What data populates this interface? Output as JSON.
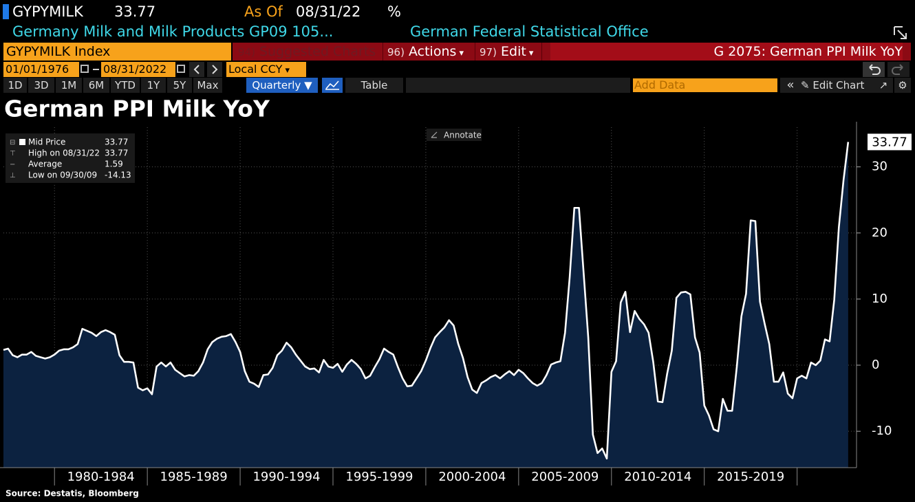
{
  "header": {
    "ticker": "GYPYMILK",
    "last_price": 33.77,
    "as_of_label": "As Of",
    "as_of_date": "08/31/22",
    "unit": "%",
    "description": "Germany Milk and Milk Products GP09 105...",
    "source_org": "German Federal Statistical Office"
  },
  "toolbar": {
    "security": "GYPYMILK Index",
    "menus": [
      {
        "num": "94)",
        "label": "Suggested Charts"
      },
      {
        "num": "96)",
        "label": "Actions"
      },
      {
        "num": "97)",
        "label": "Edit"
      }
    ],
    "chart_id": "G 2075: German PPI Milk YoY",
    "start_date": "01/01/1976",
    "end_date": "08/31/2022",
    "currency": "Local CCY",
    "periods": [
      "1D",
      "3D",
      "1M",
      "6M",
      "YTD",
      "1Y",
      "5Y",
      "Max"
    ],
    "frequency": "Quarterly",
    "table": "Table",
    "add_data": "Add Data",
    "edit_chart": "Edit Chart"
  },
  "chart_data": {
    "type": "area",
    "title": "German PPI Milk YoY",
    "annotate": "Annotate",
    "legend_items": [
      {
        "label": "Mid Price",
        "value": 33.77
      },
      {
        "label": "High on 08/31/22",
        "value": 33.77
      },
      {
        "label": "Average",
        "value": 1.59
      },
      {
        "label": "Low on 09/30/09",
        "value": -14.13
      }
    ],
    "x": [
      1977.25,
      1977.5,
      1977.75,
      1978,
      1978.25,
      1978.5,
      1978.75,
      1979,
      1979.25,
      1979.5,
      1979.75,
      1980,
      1980.25,
      1980.5,
      1980.75,
      1981,
      1981.25,
      1981.5,
      1981.75,
      1982,
      1982.25,
      1982.5,
      1982.75,
      1983,
      1983.25,
      1983.5,
      1983.75,
      1984,
      1984.25,
      1984.5,
      1984.75,
      1985,
      1985.25,
      1985.5,
      1985.75,
      1986,
      1986.25,
      1986.5,
      1986.75,
      1987,
      1987.25,
      1987.5,
      1987.75,
      1988,
      1988.25,
      1988.5,
      1988.75,
      1989,
      1989.25,
      1989.5,
      1989.75,
      1990,
      1990.25,
      1990.5,
      1990.75,
      1991,
      1991.25,
      1991.5,
      1991.75,
      1992,
      1992.25,
      1992.5,
      1992.75,
      1993,
      1993.25,
      1993.5,
      1993.75,
      1994,
      1994.25,
      1994.5,
      1994.75,
      1995,
      1995.25,
      1995.5,
      1995.75,
      1996,
      1996.25,
      1996.5,
      1996.75,
      1997,
      1997.25,
      1997.5,
      1997.75,
      1998,
      1998.25,
      1998.5,
      1998.75,
      1999,
      1999.25,
      1999.5,
      1999.75,
      2000,
      2000.25,
      2000.5,
      2000.75,
      2001,
      2001.25,
      2001.5,
      2001.75,
      2002,
      2002.25,
      2002.5,
      2002.75,
      2003,
      2003.25,
      2003.5,
      2003.75,
      2004,
      2004.25,
      2004.5,
      2004.75,
      2005,
      2005.25,
      2005.5,
      2005.75,
      2006,
      2006.25,
      2006.5,
      2006.75,
      2007,
      2007.25,
      2007.5,
      2007.75,
      2008,
      2008.25,
      2008.5,
      2008.75,
      2009,
      2009.25,
      2009.5,
      2009.75,
      2010,
      2010.25,
      2010.5,
      2010.75,
      2011,
      2011.25,
      2011.5,
      2011.75,
      2012,
      2012.25,
      2012.5,
      2012.75,
      2013,
      2013.25,
      2013.5,
      2013.75,
      2014,
      2014.25,
      2014.5,
      2014.75,
      2015,
      2015.25,
      2015.5,
      2015.75,
      2016,
      2016.25,
      2016.5,
      2016.75,
      2017,
      2017.25,
      2017.5,
      2017.75,
      2018,
      2018.25,
      2018.5,
      2018.75,
      2019,
      2019.25,
      2019.5,
      2019.75,
      2020,
      2020.25,
      2020.5,
      2020.75,
      2021,
      2021.25,
      2021.5,
      2021.75,
      2022,
      2022.25,
      2022.5,
      2022.75
    ],
    "values": [
      2.3,
      2.5,
      1.5,
      1.2,
      1.6,
      1.6,
      2.0,
      1.4,
      1.2,
      1.0,
      1.2,
      1.6,
      2.2,
      2.4,
      2.4,
      2.7,
      3.2,
      5.5,
      5.2,
      4.9,
      4.4,
      5.0,
      5.3,
      5.0,
      4.6,
      1.5,
      0.5,
      0.5,
      0.4,
      -3.4,
      -3.8,
      -3.5,
      -4.4,
      -0.2,
      0.4,
      -0.2,
      0.4,
      -0.7,
      -1.2,
      -1.7,
      -1.5,
      -1.6,
      -0.9,
      0.4,
      2.4,
      3.5,
      4.0,
      4.3,
      4.4,
      4.7,
      3.5,
      2.0,
      -0.9,
      -2.5,
      -2.8,
      -3.3,
      -1.5,
      -1.4,
      -0.4,
      1.5,
      2.2,
      3.4,
      2.7,
      1.6,
      0.7,
      -0.2,
      -0.6,
      -0.5,
      -1.1,
      0.8,
      -0.2,
      -0.4,
      0.2,
      -1.0,
      0.1,
      0.8,
      0.2,
      -0.6,
      -2.0,
      -1.6,
      -0.3,
      0.9,
      2.5,
      2.0,
      1.6,
      -0.3,
      -2.0,
      -3.2,
      -3.1,
      -2.0,
      -0.9,
      0.7,
      2.6,
      4.2,
      5.0,
      5.7,
      6.8,
      6.0,
      3.2,
      1.1,
      -1.8,
      -3.7,
      -4.2,
      -2.7,
      -2.3,
      -1.8,
      -1.5,
      -2.0,
      -1.4,
      -0.9,
      -1.5,
      -0.7,
      -1.2,
      -2.0,
      -2.7,
      -3.1,
      -2.7,
      -1.5,
      0.1,
      0.4,
      0.6,
      4.9,
      13.3,
      23.8,
      23.8,
      14.0,
      4.2,
      -10.5,
      -13.3,
      -12.6,
      -14.13,
      -1.0,
      0.6,
      9.5,
      11.1,
      5.0,
      8.2,
      7.0,
      6.2,
      4.9,
      0.5,
      -5.5,
      -5.6,
      -1.3,
      2.2,
      10.2,
      11.0,
      11.1,
      10.7,
      4.2,
      1.9,
      -6.1,
      -7.6,
      -9.7,
      -10.0,
      -5.1,
      -6.9,
      -6.9,
      -0.3,
      7.4,
      10.8,
      21.9,
      21.8,
      9.6,
      6.3,
      3.2,
      -2.5,
      -2.5,
      -1.1,
      -4.3,
      -5.0,
      -2.0,
      -1.6,
      -2.0,
      0.4,
      0,
      0.7,
      3.9,
      3.6,
      9.9,
      20.9,
      28.0,
      33.77
    ],
    "color": "#0c2240",
    "line_color": "#ffffff",
    "xlim": [
      1977.25,
      2023.2
    ],
    "ylim": [
      -15.5,
      36
    ],
    "xgrid": [
      1980,
      1985,
      1990,
      1995,
      2000,
      2005,
      2010,
      2015,
      2020
    ],
    "xticks": [
      {
        "value": 1982.5,
        "label": "1980-1984"
      },
      {
        "value": 1987.5,
        "label": "1985-1989"
      },
      {
        "value": 1992.5,
        "label": "1990-1994"
      },
      {
        "value": 1997.5,
        "label": "1995-1999"
      },
      {
        "value": 2002.5,
        "label": "2000-2004"
      },
      {
        "value": 2007.5,
        "label": "2005-2009"
      },
      {
        "value": 2012.5,
        "label": "2010-2014"
      },
      {
        "value": 2017.5,
        "label": "2015-2019"
      }
    ],
    "yticks": [
      -10,
      0,
      10,
      20,
      30
    ],
    "grid": true,
    "source": "Source: Destatis, Bloomberg"
  }
}
